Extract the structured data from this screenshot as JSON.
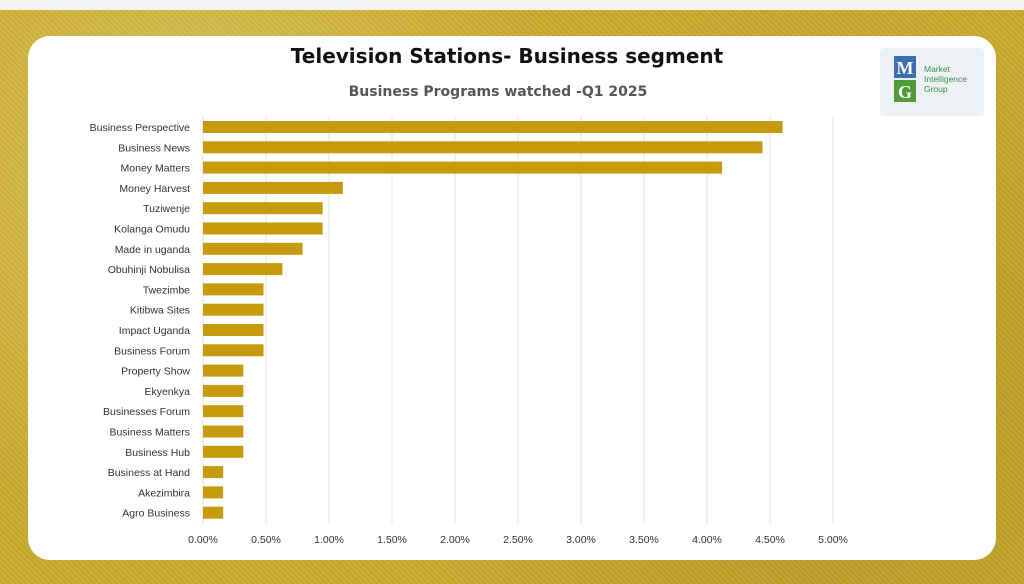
{
  "header": {
    "title": "Television Stations- Business segment",
    "subtitle": "Business Programs watched -Q1 2025"
  },
  "logo": {
    "letters": "MG",
    "line1": "Market",
    "line2": "Intelligence",
    "line3": "Group",
    "colors": {
      "blue": "#3d6fb0",
      "green": "#4f9b3a"
    }
  },
  "chart_data": {
    "type": "bar",
    "orientation": "horizontal",
    "title": "Business Programs watched -Q1 2025",
    "categories": [
      "Business Perspective",
      "Business News",
      "Money Matters",
      "Money Harvest",
      "Tuziwenje",
      "Kolanga Omudu",
      "Made in uganda",
      "Obuhinji Nobulisa",
      "Twezimbe",
      "Kitibwa Sites",
      "Impact Uganda",
      "Business Forum",
      "Property Show",
      "Ekyenkya",
      "Businesses Forum",
      "Business  Matters",
      "Business  Hub",
      "Business  at Hand",
      "Akezimbira",
      "Agro Business"
    ],
    "values": [
      4.6,
      4.44,
      4.12,
      1.11,
      0.95,
      0.95,
      0.79,
      0.63,
      0.48,
      0.48,
      0.48,
      0.48,
      0.32,
      0.32,
      0.32,
      0.32,
      0.32,
      0.16,
      0.16,
      0.16
    ],
    "xlim": [
      0,
      5
    ],
    "xticks": [
      "0.00%",
      "0.50%",
      "1.00%",
      "1.50%",
      "2.00%",
      "2.50%",
      "3.00%",
      "3.50%",
      "4.00%",
      "4.50%",
      "5.00%"
    ],
    "grid": "vertical",
    "bar_color": "#c59a0d"
  }
}
